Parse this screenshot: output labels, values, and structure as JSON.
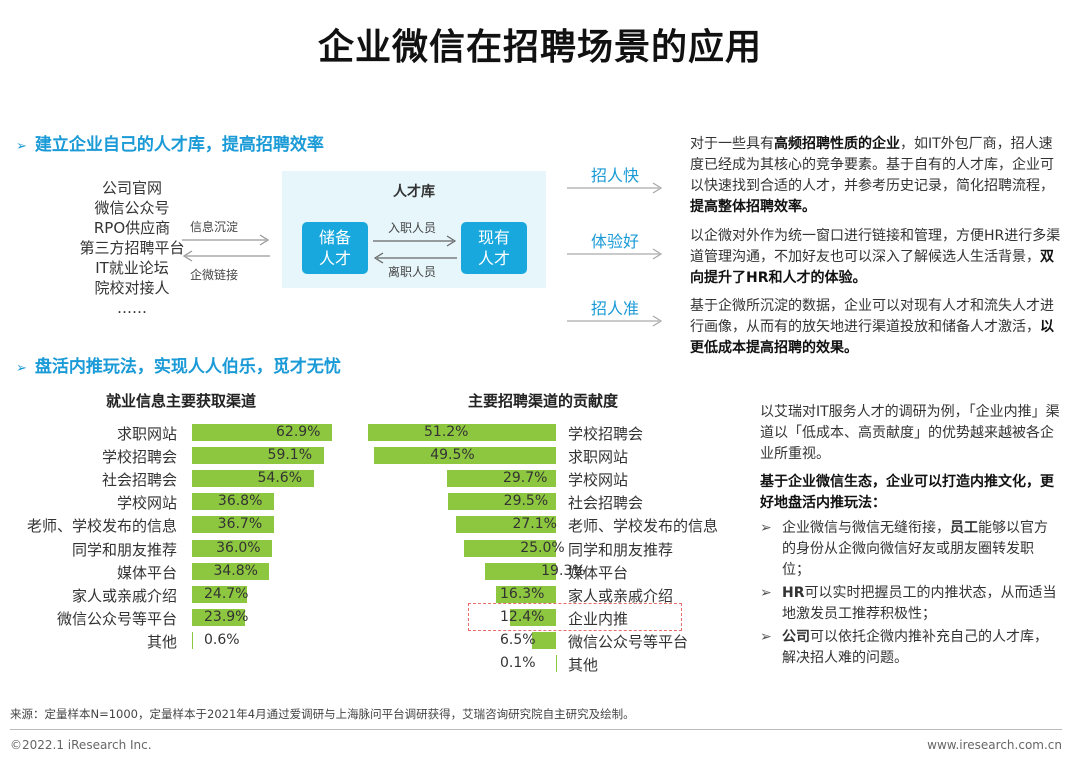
{
  "title": "企业微信在招聘场景的应用",
  "colors": {
    "accent": "#1a9ad6",
    "bar": "#8dc63f",
    "box": "#19a8de",
    "pool": "#e6f6fb",
    "highlight": "#e86c6c"
  },
  "section1": {
    "heading": "建立企业自己的人才库，提高招聘效率",
    "sources": [
      "公司官网",
      "微信公众号",
      "RPO供应商",
      "第三方招聘平台",
      "IT就业论坛",
      "院校对接人",
      "……"
    ],
    "arrow_right_label": "信息沉淀",
    "arrow_left_label": "企微链接",
    "pool_title": "人才库",
    "box_left": "储备人才",
    "box_left_l1": "储备",
    "box_left_l2": "人才",
    "box_right_l1": "现有",
    "box_right_l2": "人才",
    "flow_in": "入职人员",
    "flow_out": "离职人员",
    "benefits": [
      {
        "label": "招人快"
      },
      {
        "label": "体验好"
      },
      {
        "label": "招人准"
      }
    ],
    "desc1_a": "对于一些具有",
    "desc1_b": "高频招聘性质的企业",
    "desc1_c": "，如IT外包厂商，招人速度已经成为其核心的竞争要素。基于自有的人才库，企业可以快速找到合适的人才，并参考历史记录，简化招聘流程，",
    "desc1_d": "提高整体招聘效率。",
    "desc2_a": "以企微对外作为统一窗口进行链接和管理，方便HR进行多渠道管理沟通，不加好友也可以深入了解候选人生活背景，",
    "desc2_b": "双向提升了HR和人才的体验。",
    "desc3_a": "基于企微所沉淀的数据，企业可以对现有人才和流失人才进行画像，从而有的放矢地进行渠道投放和储备人才激活，",
    "desc3_b": "以更低成本提高招聘的效果。"
  },
  "section2": {
    "heading": "盘活内推玩法，实现人人伯乐，觅才无忧"
  },
  "chart_data": [
    {
      "type": "bar",
      "orientation": "horizontal",
      "title": "就业信息主要获取渠道",
      "categories": [
        "求职网站",
        "学校招聘会",
        "社会招聘会",
        "学校网站",
        "老师、学校发布的信息",
        "同学和朋友推荐",
        "媒体平台",
        "家人或亲戚介绍",
        "微信公众号等平台",
        "其他"
      ],
      "values": [
        62.9,
        59.1,
        54.6,
        36.8,
        36.7,
        36.0,
        34.8,
        24.7,
        23.9,
        0.6
      ],
      "labels": [
        "62.9%",
        "59.1%",
        "54.6%",
        "36.8%",
        "36.7%",
        "36.0%",
        "34.8%",
        "24.7%",
        "23.9%",
        "0.6%"
      ],
      "unit": "%"
    },
    {
      "type": "bar",
      "orientation": "horizontal",
      "title": "主要招聘渠道的贡献度",
      "categories": [
        "学校招聘会",
        "求职网站",
        "学校网站",
        "社会招聘会",
        "老师、学校发布的信息",
        "同学和朋友推荐",
        "媒体平台",
        "家人或亲戚介绍",
        "企业内推",
        "微信公众号等平台",
        "其他"
      ],
      "values": [
        51.2,
        49.5,
        29.7,
        29.5,
        27.1,
        25.0,
        19.3,
        16.3,
        12.4,
        6.5,
        0.1
      ],
      "labels": [
        "51.2%",
        "49.5%",
        "29.7%",
        "29.5%",
        "27.1%",
        "25.0%",
        "19.3%",
        "16.3%",
        "12.4%",
        "6.5%",
        "0.1%"
      ],
      "highlight": "企业内推",
      "unit": "%"
    }
  ],
  "right": {
    "p1": "以艾瑞对IT服务人才的调研为例，「企业内推」渠道以「低成本、高贡献度」的优势越来越被各企业所重视。",
    "p2": "基于企业微信生态，企业可以打造内推文化，更好地盘活内推玩法：",
    "bullet_mark": "➢",
    "b1_a": "企业微信与微信无缝衔接，",
    "b1_b": "员工",
    "b1_c": "能够以官方的身份从企微向微信好友或朋友圈转发职位；",
    "b2_a": "HR",
    "b2_b": "可以实时把握员工的内推状态，从而适当地激发员工推荐积极性；",
    "b3_a": "公司",
    "b3_b": "可以依托企微内推补充自己的人才库，解决招人难的问题。"
  },
  "footer": {
    "source": "来源：定量样本N=1000，定量样本于2021年4月通过爱调研与上海脉问平台调研获得，艾瑞咨询研究院自主研究及绘制。",
    "copyright": "©2022.1 iResearch Inc.",
    "website": "www.iresearch.com.cn"
  }
}
